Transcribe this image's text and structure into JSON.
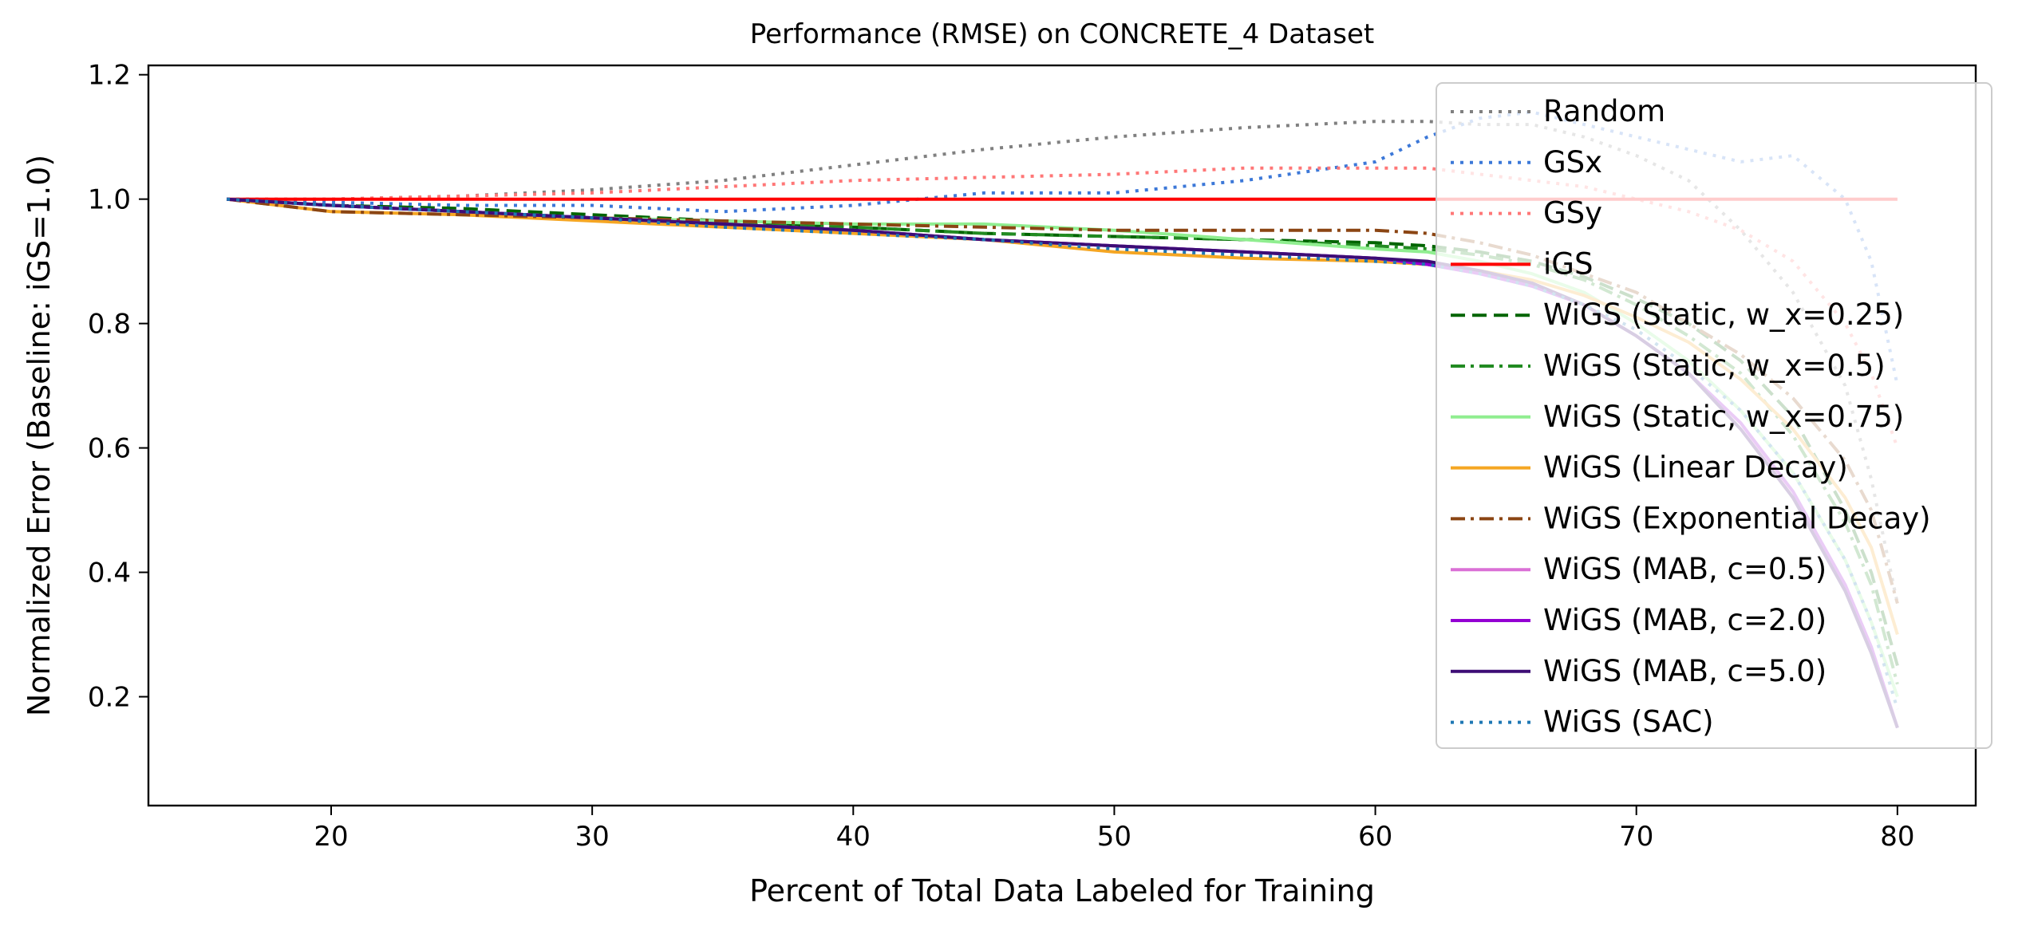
{
  "chart_data": {
    "type": "line",
    "title": "Performance (RMSE) on CONCRETE_4 Dataset",
    "xlabel": "Percent of Total Data Labeled for Training",
    "ylabel": "Normalized Error (Baseline: iGS=1.0)",
    "xlim": [
      13,
      83
    ],
    "ylim": [
      0.025,
      1.215
    ],
    "xticks": [
      20,
      30,
      40,
      50,
      60,
      70,
      80
    ],
    "yticks": [
      0.2,
      0.4,
      0.6,
      0.8,
      1.0,
      1.2
    ],
    "xtick_labels": [
      "20",
      "30",
      "40",
      "50",
      "60",
      "70",
      "80"
    ],
    "ytick_labels": [
      "0.2",
      "0.4",
      "0.6",
      "0.8",
      "1.0",
      "1.2"
    ],
    "grid": false,
    "legend_position": "upper right",
    "x": [
      16,
      20,
      25,
      30,
      35,
      40,
      45,
      50,
      55,
      60,
      62,
      64,
      66,
      68,
      70,
      72,
      74,
      76,
      78,
      79,
      80
    ],
    "series": [
      {
        "name": "Random",
        "color": "#808080",
        "dash": "dotted",
        "band": false,
        "values": [
          1.0,
          1.0,
          1.005,
          1.015,
          1.03,
          1.055,
          1.08,
          1.1,
          1.115,
          1.125,
          1.125,
          1.12,
          1.12,
          1.1,
          1.07,
          1.03,
          0.95,
          0.85,
          0.7,
          0.55,
          0.35
        ]
      },
      {
        "name": "GSx",
        "color": "#3c78d8",
        "dash": "dotted",
        "band": false,
        "values": [
          1.0,
          0.995,
          0.99,
          0.99,
          0.98,
          0.99,
          1.01,
          1.01,
          1.03,
          1.06,
          1.1,
          1.13,
          1.14,
          1.12,
          1.1,
          1.08,
          1.06,
          1.07,
          1.0,
          0.9,
          0.7
        ]
      },
      {
        "name": "GSy",
        "color": "#ff7777",
        "dash": "dotted",
        "band": false,
        "values": [
          1.0,
          1.0,
          1.005,
          1.01,
          1.02,
          1.03,
          1.035,
          1.04,
          1.05,
          1.05,
          1.05,
          1.04,
          1.03,
          1.02,
          1.0,
          0.98,
          0.95,
          0.9,
          0.8,
          0.72,
          0.6
        ]
      },
      {
        "name": "iGS",
        "color": "#ff0000",
        "dash": "solid",
        "band": false,
        "values": [
          1.0,
          1.0,
          1.0,
          1.0,
          1.0,
          1.0,
          1.0,
          1.0,
          1.0,
          1.0,
          1.0,
          1.0,
          1.0,
          1.0,
          1.0,
          1.0,
          1.0,
          1.0,
          1.0,
          1.0,
          1.0
        ]
      },
      {
        "name": "WiGS (Static, w_x=0.25)",
        "color": "#006400",
        "dash": "dashed",
        "band": false,
        "values": [
          1.0,
          0.99,
          0.985,
          0.975,
          0.965,
          0.955,
          0.945,
          0.94,
          0.935,
          0.93,
          0.925,
          0.915,
          0.9,
          0.875,
          0.84,
          0.8,
          0.74,
          0.65,
          0.5,
          0.4,
          0.25
        ]
      },
      {
        "name": "WiGS (Static, w_x=0.5)",
        "color": "#228b22",
        "dash": "dashdot",
        "band": false,
        "values": [
          1.0,
          0.99,
          0.98,
          0.97,
          0.96,
          0.955,
          0.945,
          0.94,
          0.935,
          0.925,
          0.92,
          0.91,
          0.895,
          0.87,
          0.83,
          0.78,
          0.72,
          0.62,
          0.48,
          0.38,
          0.22
        ]
      },
      {
        "name": "WiGS (Static, w_x=0.75)",
        "color": "#90ee90",
        "dash": "solid",
        "band": false,
        "values": [
          1.0,
          0.99,
          0.98,
          0.97,
          0.965,
          0.96,
          0.96,
          0.95,
          0.935,
          0.92,
          0.915,
          0.9,
          0.88,
          0.85,
          0.8,
          0.74,
          0.66,
          0.56,
          0.42,
          0.32,
          0.2
        ]
      },
      {
        "name": "WiGS (Linear Decay)",
        "color": "#f5a623",
        "dash": "solid",
        "band": false,
        "values": [
          1.0,
          0.98,
          0.975,
          0.965,
          0.955,
          0.945,
          0.935,
          0.915,
          0.905,
          0.9,
          0.895,
          0.885,
          0.87,
          0.845,
          0.81,
          0.77,
          0.71,
          0.63,
          0.52,
          0.44,
          0.3
        ]
      },
      {
        "name": "WiGS (Exponential Decay)",
        "color": "#8b4513",
        "dash": "dashdot",
        "band": false,
        "values": [
          1.0,
          0.98,
          0.975,
          0.97,
          0.965,
          0.96,
          0.955,
          0.95,
          0.95,
          0.95,
          0.945,
          0.93,
          0.91,
          0.88,
          0.85,
          0.8,
          0.75,
          0.68,
          0.58,
          0.5,
          0.35
        ]
      },
      {
        "name": "WiGS (MAB, c=0.5)",
        "color": "#da70d6",
        "dash": "solid",
        "band": false,
        "values": [
          1.0,
          0.99,
          0.98,
          0.97,
          0.96,
          0.95,
          0.935,
          0.925,
          0.915,
          0.905,
          0.895,
          0.88,
          0.86,
          0.83,
          0.78,
          0.72,
          0.64,
          0.52,
          0.38,
          0.28,
          0.15
        ]
      },
      {
        "name": "WiGS (MAB, c=2.0)",
        "color": "#9400d3",
        "dash": "solid",
        "band": false,
        "values": [
          1.0,
          0.99,
          0.98,
          0.97,
          0.96,
          0.95,
          0.935,
          0.925,
          0.915,
          0.905,
          0.895,
          0.88,
          0.86,
          0.83,
          0.78,
          0.72,
          0.64,
          0.53,
          0.38,
          0.28,
          0.15
        ]
      },
      {
        "name": "WiGS (MAB, c=5.0)",
        "color": "#3d0d75",
        "dash": "solid",
        "band": false,
        "values": [
          1.0,
          0.99,
          0.98,
          0.97,
          0.96,
          0.95,
          0.935,
          0.925,
          0.915,
          0.905,
          0.9,
          0.885,
          0.865,
          0.83,
          0.78,
          0.72,
          0.63,
          0.52,
          0.37,
          0.27,
          0.15
        ]
      },
      {
        "name": "WiGS (SAC)",
        "color": "#1f77b4",
        "dash": "dotted",
        "band": false,
        "values": [
          1.0,
          0.99,
          0.98,
          0.97,
          0.955,
          0.945,
          0.935,
          0.92,
          0.91,
          0.9,
          0.895,
          0.88,
          0.86,
          0.83,
          0.79,
          0.73,
          0.66,
          0.56,
          0.42,
          0.32,
          0.18
        ]
      }
    ]
  }
}
